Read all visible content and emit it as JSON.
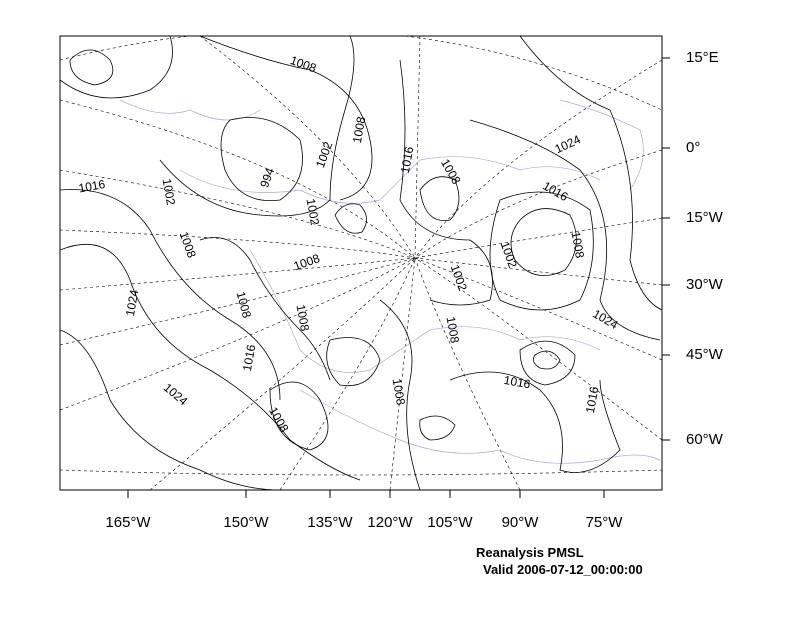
{
  "map": {
    "title": "Reanalysis PMSL",
    "subtitle": "Valid 2006-07-12_00:00:00",
    "right_labels": [
      "15°E",
      "0°",
      "15°W",
      "30°W",
      "45°W",
      "60°W"
    ],
    "bottom_labels": [
      "165°W",
      "150°W",
      "135°W",
      "120°W",
      "105°W",
      "90°W",
      "75°W"
    ],
    "contour_labels": [
      1008,
      1008,
      1002,
      1016,
      1008,
      1024,
      1016,
      994,
      1016,
      1002,
      1002,
      1008,
      1008,
      1002,
      1002,
      1008,
      1024,
      1008,
      1008,
      1024,
      1008,
      1016,
      1016,
      1008,
      1016,
      1024,
      1008
    ]
  }
}
